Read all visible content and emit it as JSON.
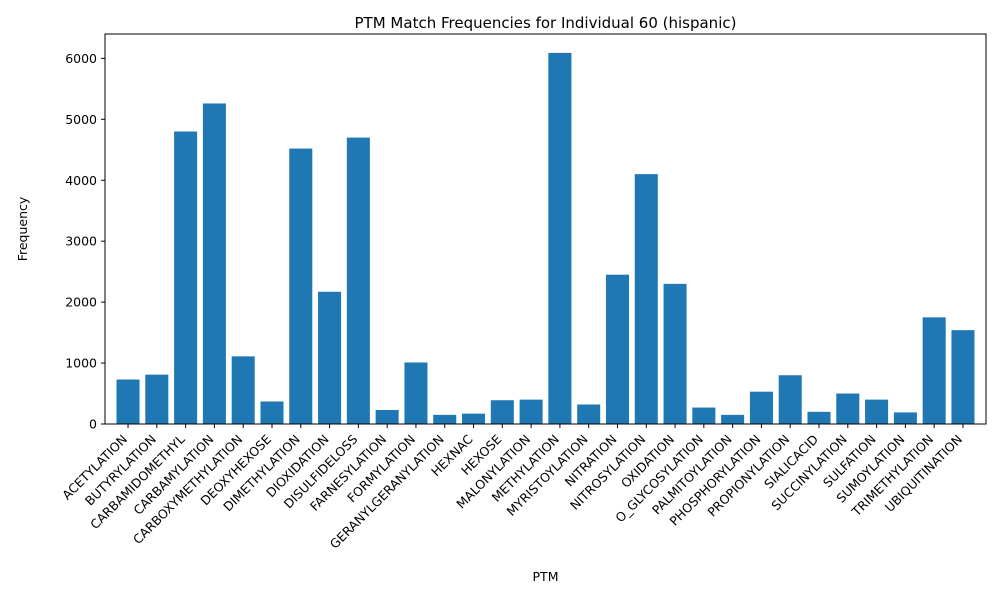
{
  "chart_data": {
    "type": "bar",
    "title": "PTM Match Frequencies for Individual 60 (hispanic)",
    "xlabel": "PTM",
    "ylabel": "Frequency",
    "ylim": [
      0,
      6400
    ],
    "yticks": [
      0,
      1000,
      2000,
      3000,
      4000,
      5000,
      6000
    ],
    "grid": false,
    "bar_color": "#1f77b4",
    "categories": [
      "ACETYLATION",
      "BUTYRYLATION",
      "CARBAMIDOMETHYL",
      "CARBAMYLATION",
      "CARBOXYMETHYLATION",
      "DEOXYHEXOSE",
      "DIMETHYLATION",
      "DIOXIDATION",
      "DISULFIDELOSS",
      "FARNESYLATION",
      "FORMYLATION",
      "GERANYLGERANYLATION",
      "HEXNAC",
      "HEXOSE",
      "MALONYLATION",
      "METHYLATION",
      "MYRISTOYLATION",
      "NITRATION",
      "NITROSYLATION",
      "OXIDATION",
      "O_GLYCOSYLATION",
      "PALMITOYLATION",
      "PHOSPHORYLATION",
      "PROPIONYLATION",
      "SIALICACID",
      "SUCCINYLATION",
      "SULFATION",
      "SUMOYLATION",
      "TRIMETHYLATION",
      "UBIQUITINATION"
    ],
    "values": [
      730,
      810,
      4800,
      5260,
      1110,
      370,
      4520,
      2170,
      4700,
      230,
      1010,
      150,
      170,
      390,
      400,
      6090,
      320,
      2450,
      4100,
      2300,
      270,
      150,
      530,
      800,
      200,
      500,
      400,
      190,
      1750,
      1540
    ]
  }
}
